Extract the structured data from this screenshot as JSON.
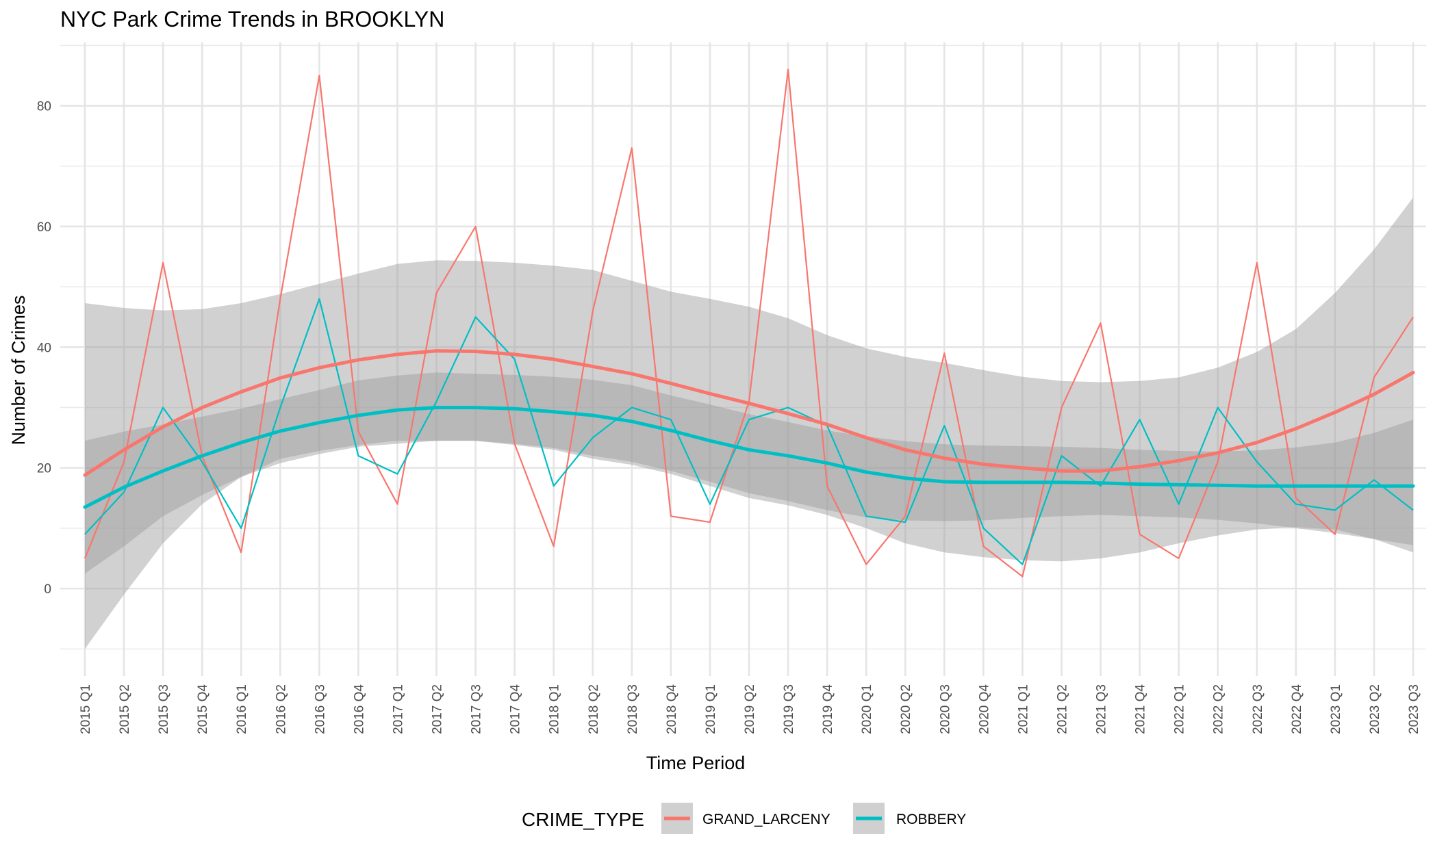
{
  "chart_data": {
    "type": "line",
    "title": "NYC Park Crime Trends in BROOKLYN",
    "xlabel": "Time Period",
    "ylabel": "Number of Crimes",
    "ylim": [
      -14.5,
      90.5
    ],
    "yticks": [
      0,
      20,
      40,
      60,
      80
    ],
    "grid": true,
    "legend": {
      "title": "CRIME_TYPE",
      "position": "bottom"
    },
    "categories": [
      "2015 Q1",
      "2015 Q2",
      "2015 Q3",
      "2015 Q4",
      "2016 Q1",
      "2016 Q2",
      "2016 Q3",
      "2016 Q4",
      "2017 Q1",
      "2017 Q2",
      "2017 Q3",
      "2017 Q4",
      "2018 Q1",
      "2018 Q2",
      "2018 Q3",
      "2018 Q4",
      "2019 Q1",
      "2019 Q2",
      "2019 Q3",
      "2019 Q4",
      "2020 Q1",
      "2020 Q2",
      "2020 Q3",
      "2020 Q4",
      "2021 Q1",
      "2021 Q2",
      "2021 Q3",
      "2021 Q4",
      "2022 Q1",
      "2022 Q2",
      "2022 Q3",
      "2022 Q4",
      "2023 Q1",
      "2023 Q2",
      "2023 Q3"
    ],
    "series": [
      {
        "name": "GRAND_LARCENY",
        "color": "#f8766d",
        "values": [
          5,
          21,
          54,
          22,
          6,
          48,
          85,
          26,
          14,
          49,
          60,
          24,
          7,
          46,
          73,
          12,
          11,
          31,
          86,
          17,
          4,
          12,
          39,
          7,
          2,
          30,
          44,
          9,
          5,
          21,
          54,
          15,
          9,
          35,
          45
        ],
        "smooth": [
          18.8,
          23,
          26.8,
          30,
          32.6,
          34.9,
          36.6,
          37.9,
          38.8,
          39.4,
          39.3,
          38.8,
          38,
          36.8,
          35.6,
          34,
          32.3,
          30.7,
          29,
          27.2,
          25,
          23,
          21.6,
          20.6,
          20,
          19.5,
          19.5,
          20.2,
          21.2,
          22.5,
          24.2,
          26.5,
          29.2,
          32.2,
          35.8
        ],
        "ci_low": [
          -10,
          -1,
          7.5,
          14,
          18.5,
          21.5,
          22.8,
          23.8,
          24.5,
          24.5,
          24.5,
          23.8,
          23,
          21.5,
          20.5,
          19,
          17,
          15,
          13.8,
          12.2,
          10,
          7.5,
          6,
          5.2,
          4.7,
          4.5,
          5,
          6,
          7.5,
          8.8,
          9.8,
          10.2,
          9.8,
          8.2,
          6
        ],
        "ci_high": [
          47.3,
          46.5,
          46.1,
          46.3,
          47.3,
          48.8,
          50.5,
          52.2,
          53.8,
          54.4,
          54.3,
          54,
          53.5,
          52.8,
          51,
          49.2,
          48,
          46.7,
          44.8,
          42,
          39.8,
          38.4,
          37.4,
          36.2,
          35.1,
          34.4,
          34.2,
          34.4,
          35,
          36.6,
          39.2,
          43,
          49,
          56.2,
          64.8
        ]
      },
      {
        "name": "ROBBERY",
        "color": "#00bfc4",
        "values": [
          9,
          16,
          30,
          21,
          10,
          30,
          48,
          22,
          19,
          31,
          45,
          38,
          17,
          25,
          30,
          28,
          14,
          28,
          30,
          27,
          12,
          11,
          27,
          10,
          4,
          22,
          17,
          28,
          14,
          30,
          21,
          14,
          13,
          18,
          13
        ],
        "smooth": [
          13.5,
          16.8,
          19.5,
          22,
          24.2,
          26.1,
          27.5,
          28.7,
          29.6,
          30,
          30,
          29.8,
          29.3,
          28.7,
          27.7,
          26.2,
          24.5,
          23,
          22,
          20.8,
          19.3,
          18.3,
          17.7,
          17.6,
          17.6,
          17.6,
          17.5,
          17.3,
          17.2,
          17.1,
          17,
          17,
          17,
          17,
          17
        ],
        "ci_low": [
          2.5,
          7,
          12,
          15.5,
          18.5,
          20.8,
          22.3,
          23.5,
          24,
          24.5,
          24.5,
          24,
          23.3,
          22,
          21,
          19.5,
          17.7,
          15.8,
          14.5,
          13,
          11.8,
          11.3,
          11.2,
          11.3,
          11.7,
          12,
          12.2,
          12,
          11.8,
          11.4,
          10.8,
          10,
          9.2,
          8.2,
          7.2
        ],
        "ci_high": [
          24.5,
          26,
          27.2,
          28.5,
          29.8,
          31.4,
          32.9,
          34.5,
          35.3,
          35.8,
          35.6,
          35.4,
          35.1,
          34.6,
          33.7,
          32,
          30.5,
          28.9,
          27.6,
          26.2,
          25.2,
          24.4,
          23.9,
          23.7,
          23.6,
          23.5,
          23.3,
          23,
          22.8,
          22.7,
          22.9,
          23.4,
          24.2,
          25.8,
          28
        ]
      }
    ]
  }
}
